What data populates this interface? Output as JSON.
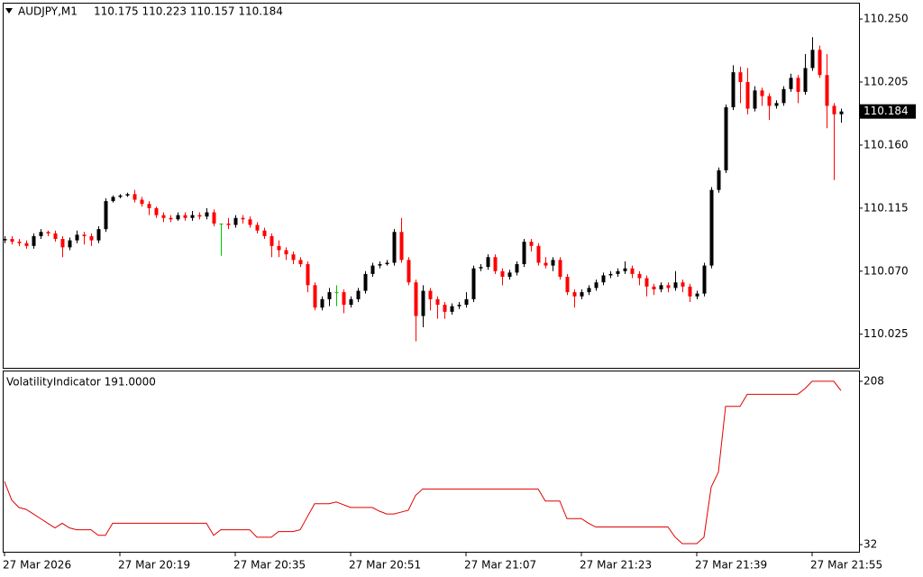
{
  "chart_data": [
    {
      "type": "candlestick",
      "title": "AUDJPY,M1",
      "subtitle": "110.175 110.223 110.157 110.184",
      "last_label": "110.184",
      "colors": {
        "up": "#000000",
        "down": "#ff0000",
        "doji": "#00c000"
      },
      "categories": [
        "27 Mar 2026",
        null,
        null,
        null,
        null,
        null,
        null,
        null,
        null,
        null,
        null,
        null,
        null,
        null,
        null,
        null,
        "27 Mar 20:19",
        null,
        null,
        null,
        null,
        null,
        null,
        null,
        null,
        null,
        null,
        null,
        null,
        null,
        null,
        null,
        "27 Mar 20:35",
        null,
        null,
        null,
        null,
        null,
        null,
        null,
        null,
        null,
        null,
        null,
        null,
        null,
        null,
        null,
        "27 Mar 20:51",
        null,
        null,
        null,
        null,
        null,
        null,
        null,
        null,
        null,
        null,
        null,
        null,
        null,
        null,
        null,
        "27 Mar 21:07",
        null,
        null,
        null,
        null,
        null,
        null,
        null,
        null,
        null,
        null,
        null,
        null,
        null,
        null,
        null,
        "27 Mar 21:23",
        null,
        null,
        null,
        null,
        null,
        null,
        null,
        null,
        null,
        null,
        null,
        null,
        null,
        null,
        null,
        "27 Mar 21:39",
        null,
        null,
        null,
        null,
        null,
        null,
        null,
        null,
        null,
        null,
        null,
        null,
        null,
        null,
        null,
        "27 Mar 21:55",
        null,
        null,
        null,
        null
      ],
      "open": [
        110.092,
        110.093,
        110.091,
        110.09,
        110.088,
        110.095,
        110.098,
        110.097,
        110.093,
        110.087,
        110.092,
        110.096,
        110.095,
        110.092,
        110.1,
        110.12,
        110.123,
        110.124,
        110.125,
        110.121,
        110.118,
        110.115,
        110.11,
        110.108,
        110.107,
        110.11,
        110.108,
        110.11,
        110.109,
        110.112,
        110.104,
        110.104,
        110.103,
        110.108,
        110.107,
        110.103,
        110.099,
        110.095,
        110.088,
        110.085,
        110.082,
        110.078,
        110.075,
        110.06,
        110.044,
        110.05,
        110.055,
        110.055,
        110.046,
        110.05,
        110.056,
        110.068,
        110.074,
        110.075,
        110.076,
        110.098,
        110.078,
        110.062,
        110.038,
        110.056,
        110.05,
        110.046,
        110.041,
        110.045,
        110.046,
        110.05,
        110.072,
        110.073,
        110.08,
        110.07,
        110.066,
        110.069,
        110.075,
        110.091,
        110.088,
        110.076,
        110.074,
        110.078,
        110.066,
        110.055,
        110.052,
        110.055,
        110.058,
        110.062,
        110.067,
        110.068,
        110.07,
        110.072,
        110.068,
        110.065,
        110.059,
        110.057,
        110.06,
        110.058,
        110.062,
        110.059,
        110.052,
        110.054,
        110.074,
        110.128,
        110.142,
        110.187,
        110.212,
        110.205,
        110.186,
        110.199,
        110.195,
        110.188,
        110.19,
        110.2,
        110.208,
        110.198,
        110.215,
        110.228,
        110.21,
        110.188,
        110.182
      ],
      "high": [
        110.095,
        110.095,
        110.093,
        110.092,
        110.097,
        110.1,
        110.099,
        110.099,
        110.095,
        110.094,
        110.099,
        110.098,
        110.097,
        110.102,
        110.122,
        110.124,
        110.125,
        110.126,
        110.128,
        110.123,
        110.12,
        110.116,
        110.112,
        110.11,
        110.112,
        110.112,
        110.113,
        110.112,
        110.115,
        110.114,
        110.104,
        110.108,
        110.11,
        110.11,
        110.109,
        110.105,
        110.101,
        110.097,
        110.092,
        110.087,
        110.084,
        110.08,
        110.077,
        110.062,
        110.052,
        110.058,
        110.06,
        110.057,
        110.052,
        110.058,
        110.07,
        110.076,
        110.077,
        110.078,
        110.1,
        110.108,
        110.08,
        110.064,
        110.06,
        110.058,
        110.052,
        110.048,
        110.047,
        110.048,
        110.055,
        110.074,
        110.075,
        110.082,
        110.082,
        110.072,
        110.071,
        110.077,
        110.093,
        110.093,
        110.09,
        110.08,
        110.08,
        110.08,
        110.068,
        110.057,
        110.057,
        110.06,
        110.064,
        110.069,
        110.07,
        110.072,
        110.077,
        110.074,
        110.07,
        110.067,
        110.061,
        110.062,
        110.062,
        110.07,
        110.064,
        110.061,
        110.056,
        110.076,
        110.13,
        110.144,
        110.189,
        110.217,
        110.216,
        110.215,
        110.202,
        110.201,
        110.197,
        110.192,
        110.202,
        110.211,
        110.21,
        110.225,
        110.237,
        110.231,
        110.225,
        110.19,
        110.186
      ],
      "low": [
        110.09,
        110.089,
        110.088,
        110.086,
        110.086,
        110.093,
        110.095,
        110.091,
        110.08,
        110.085,
        110.09,
        110.089,
        110.088,
        110.09,
        110.098,
        110.119,
        110.122,
        110.123,
        110.119,
        110.116,
        110.11,
        110.108,
        110.105,
        110.105,
        110.106,
        110.106,
        110.106,
        110.107,
        110.107,
        110.102,
        110.081,
        110.1,
        110.101,
        110.104,
        110.101,
        110.097,
        110.093,
        110.08,
        110.08,
        110.078,
        110.075,
        110.073,
        110.055,
        110.042,
        110.042,
        110.045,
        110.045,
        110.04,
        110.044,
        110.048,
        110.054,
        110.066,
        110.072,
        110.074,
        110.074,
        110.076,
        110.06,
        110.02,
        110.03,
        110.042,
        110.036,
        110.036,
        110.039,
        110.043,
        110.044,
        110.048,
        110.07,
        110.071,
        110.068,
        110.06,
        110.064,
        110.067,
        110.073,
        110.084,
        110.074,
        110.072,
        110.07,
        110.064,
        110.053,
        110.044,
        110.05,
        110.053,
        110.056,
        110.06,
        110.065,
        110.066,
        110.068,
        110.065,
        110.06,
        110.052,
        110.053,
        110.055,
        110.055,
        110.056,
        110.055,
        110.048,
        110.05,
        110.052,
        110.072,
        110.126,
        110.14,
        110.185,
        110.19,
        110.182,
        110.184,
        110.188,
        110.178,
        110.186,
        110.188,
        110.198,
        110.19,
        110.196,
        110.213,
        110.208,
        110.172,
        110.135,
        110.176
      ],
      "close": [
        110.093,
        110.091,
        110.09,
        110.088,
        110.095,
        110.098,
        110.097,
        110.093,
        110.087,
        110.092,
        110.096,
        110.095,
        110.092,
        110.1,
        110.12,
        110.123,
        110.124,
        110.125,
        110.121,
        110.118,
        110.115,
        110.11,
        110.108,
        110.107,
        110.11,
        110.108,
        110.11,
        110.109,
        110.112,
        110.104,
        110.104,
        110.103,
        110.108,
        110.107,
        110.103,
        110.099,
        110.095,
        110.088,
        110.085,
        110.082,
        110.078,
        110.075,
        110.06,
        110.044,
        110.05,
        110.055,
        110.055,
        110.046,
        110.05,
        110.056,
        110.068,
        110.074,
        110.075,
        110.076,
        110.098,
        110.078,
        110.062,
        110.038,
        110.056,
        110.05,
        110.046,
        110.041,
        110.045,
        110.046,
        110.05,
        110.072,
        110.073,
        110.08,
        110.07,
        110.066,
        110.069,
        110.075,
        110.091,
        110.088,
        110.076,
        110.074,
        110.078,
        110.066,
        110.055,
        110.052,
        110.055,
        110.058,
        110.062,
        110.067,
        110.068,
        110.07,
        110.072,
        110.068,
        110.065,
        110.059,
        110.057,
        110.06,
        110.058,
        110.062,
        110.059,
        110.052,
        110.054,
        110.074,
        110.128,
        110.142,
        110.187,
        110.212,
        110.205,
        110.186,
        110.199,
        110.195,
        110.188,
        110.19,
        110.2,
        110.208,
        110.198,
        110.215,
        110.228,
        110.21,
        110.188,
        110.182,
        110.184
      ],
      "ylim": [
        110.001,
        110.261
      ],
      "yticks": [
        {
          "value": 110.25,
          "label": "110.250"
        },
        110.205,
        {
          "value": 110.16,
          "label": "110.160"
        },
        110.115,
        {
          "value": 110.07,
          "label": "110.070"
        },
        110.025
      ]
    },
    {
      "type": "line",
      "title": "VolatilityIndicator 191.0000",
      "color": "#e00000",
      "values": [
        100,
        80,
        72,
        70,
        65,
        60,
        55,
        50,
        55,
        50,
        48,
        48,
        48,
        42,
        42,
        55,
        55,
        55,
        55,
        55,
        55,
        55,
        55,
        55,
        55,
        55,
        55,
        55,
        55,
        42,
        48,
        48,
        48,
        48,
        48,
        40,
        40,
        40,
        46,
        46,
        46,
        48,
        62,
        76,
        76,
        76,
        78,
        75,
        72,
        72,
        72,
        72,
        68,
        65,
        65,
        67,
        69,
        85,
        92,
        92,
        92,
        92,
        92,
        92,
        92,
        92,
        92,
        92,
        92,
        92,
        92,
        92,
        92,
        92,
        92,
        79,
        79,
        79,
        60,
        60,
        60,
        55,
        51,
        51,
        51,
        51,
        51,
        51,
        51,
        51,
        51,
        51,
        51,
        40,
        33,
        33,
        33,
        40,
        94,
        110,
        181,
        181,
        181,
        194,
        194,
        194,
        194,
        194,
        194,
        194,
        194,
        200,
        208,
        208,
        208,
        208,
        198
      ],
      "ylim": [
        24.3,
        218.6
      ],
      "yticks": [
        208,
        32
      ]
    }
  ]
}
